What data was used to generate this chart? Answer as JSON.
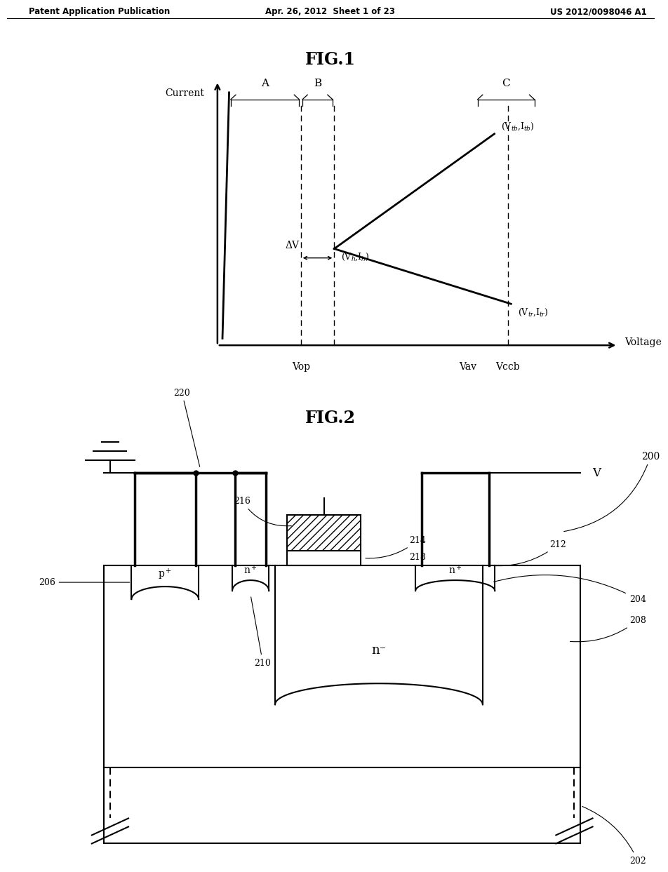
{
  "bg_color": "#ffffff",
  "header_left": "Patent Application Publication",
  "header_center": "Apr. 26, 2012  Sheet 1 of 23",
  "header_right": "US 2012/0098046 A1",
  "fig1_title": "FIG.1",
  "fig2_title": "FIG.2",
  "fig1_xlabel": "Voltage",
  "fig1_ylabel": "Current",
  "fig1_vop": "Vop",
  "fig1_vav": "Vav",
  "fig1_vccb": "Vccb",
  "fig1_delta_v": "ΔV",
  "fig1_label_A": "A",
  "fig1_label_B": "B",
  "fig1_label_C": "C",
  "fig2_label_200": "200",
  "fig2_label_202": "202",
  "fig2_label_204": "204",
  "fig2_label_206": "206",
  "fig2_label_208": "208",
  "fig2_label_210": "210",
  "fig2_label_212": "212",
  "fig2_label_214": "214",
  "fig2_label_216": "216",
  "fig2_label_218": "218",
  "fig2_label_220": "220",
  "fig2_label_V": "V",
  "fig2_label_nminus": "n⁻"
}
